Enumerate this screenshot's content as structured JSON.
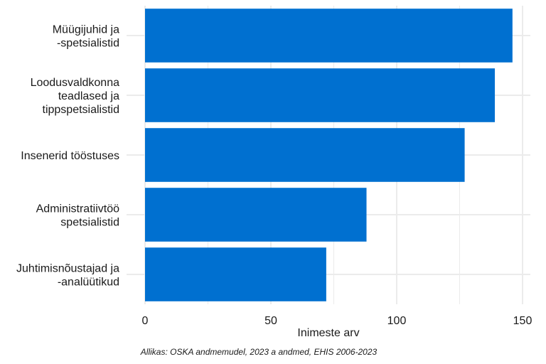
{
  "chart_data": {
    "type": "bar",
    "orientation": "horizontal",
    "categories": [
      [
        "Müügijuhid ja",
        "-spetsialistid"
      ],
      [
        "Loodusvaldkonna",
        "teadlased ja",
        "tippspetsialistid"
      ],
      [
        "Insenerid tööstuses"
      ],
      [
        "Administratiivtöö",
        "spetsialistid"
      ],
      [
        "Juhtimisnõustajad ja",
        "-analüütikud"
      ]
    ],
    "values": [
      146,
      139,
      127,
      88,
      72
    ],
    "xlabel": "Inimeste arv",
    "ylabel": "",
    "xlim": [
      0,
      153
    ],
    "xticks": [
      0,
      50,
      100,
      150
    ],
    "tick_labels": [
      "0",
      "50",
      "100",
      "150"
    ],
    "grid": true,
    "bar_color": "#0070d0",
    "grid_color": "#ebebeb",
    "caption": "Allikas: OSKA andmemudel, 2023 a andmed, EHIS 2006-2023"
  }
}
